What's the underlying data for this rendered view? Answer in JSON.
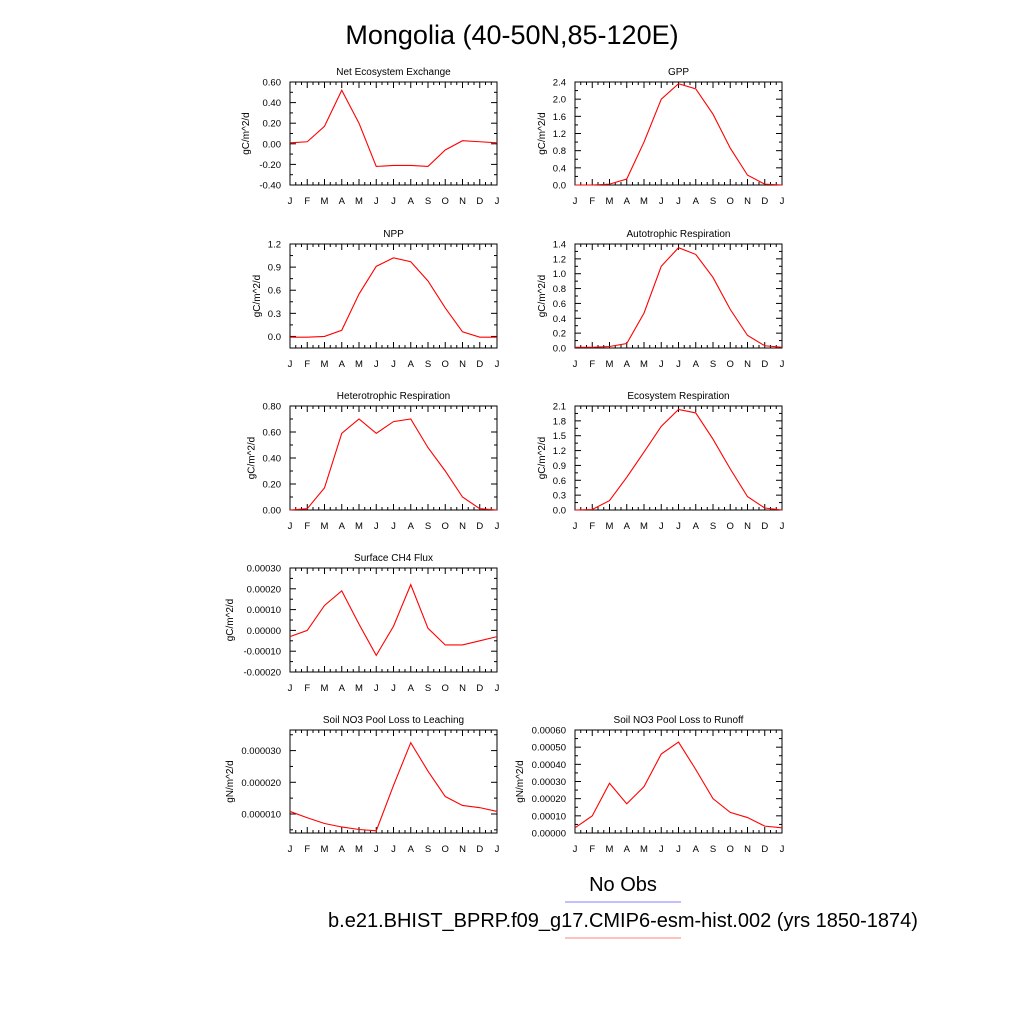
{
  "figure": {
    "title": "Mongolia (40-50N,85-120E)",
    "legend": [
      {
        "label": "No Obs",
        "color": "#8080ff"
      },
      {
        "label": "b.e21.BHIST_BPRP.f09_g17.CMIP6-esm-hist.002 (yrs 1850-1874)",
        "color": "#ff8080"
      }
    ],
    "line_color": "#ff0000"
  },
  "chart_data": [
    {
      "type": "line",
      "title": "Net Ecosystem Exchange",
      "ylabel": "gC/m^2/d",
      "categories": [
        "J",
        "F",
        "M",
        "A",
        "M",
        "J",
        "J",
        "A",
        "S",
        "O",
        "N",
        "D",
        "J"
      ],
      "series": [
        {
          "values": [
            0.01,
            0.02,
            0.17,
            0.52,
            0.2,
            -0.22,
            -0.21,
            -0.21,
            -0.22,
            -0.06,
            0.03,
            0.02,
            0.01
          ]
        }
      ],
      "ylim": [
        -0.4,
        0.6
      ],
      "yticks": [
        -0.4,
        -0.2,
        0.0,
        0.2,
        0.4,
        0.6
      ],
      "ytick_labels": [
        "-0.40",
        "-0.20",
        "0.00",
        "0.20",
        "0.40",
        "0.60"
      ]
    },
    {
      "type": "line",
      "title": "GPP",
      "ylabel": "gC/m^2/d",
      "categories": [
        "J",
        "F",
        "M",
        "A",
        "M",
        "J",
        "J",
        "A",
        "S",
        "O",
        "N",
        "D",
        "J"
      ],
      "series": [
        {
          "values": [
            0.0,
            0.0,
            0.02,
            0.14,
            1.0,
            2.0,
            2.36,
            2.24,
            1.65,
            0.86,
            0.23,
            0.02,
            0.0
          ]
        }
      ],
      "ylim": [
        0.0,
        2.4
      ],
      "yticks": [
        0.0,
        0.4,
        0.8,
        1.2,
        1.6,
        2.0,
        2.4
      ],
      "ytick_labels": [
        "0.0",
        "0.4",
        "0.8",
        "1.2",
        "1.6",
        "2.0",
        "2.4"
      ]
    },
    {
      "type": "line",
      "title": "NPP",
      "ylabel": "gC/m^2/d",
      "categories": [
        "J",
        "F",
        "M",
        "A",
        "M",
        "J",
        "J",
        "A",
        "S",
        "O",
        "N",
        "D",
        "J"
      ],
      "series": [
        {
          "values": [
            -0.01,
            -0.01,
            0.0,
            0.08,
            0.55,
            0.91,
            1.02,
            0.97,
            0.72,
            0.37,
            0.06,
            -0.01,
            -0.01
          ]
        }
      ],
      "ylim": [
        -0.15,
        1.2
      ],
      "yticks": [
        0.0,
        0.3,
        0.6,
        0.9,
        1.2
      ],
      "ytick_labels": [
        "0.0",
        "0.3",
        "0.6",
        "0.9",
        "1.2"
      ]
    },
    {
      "type": "line",
      "title": "Autotrophic Respiration",
      "ylabel": "gC/m^2/d",
      "categories": [
        "J",
        "F",
        "M",
        "A",
        "M",
        "J",
        "J",
        "A",
        "S",
        "O",
        "N",
        "D",
        "J"
      ],
      "series": [
        {
          "values": [
            0.01,
            0.01,
            0.02,
            0.06,
            0.47,
            1.1,
            1.35,
            1.26,
            0.95,
            0.52,
            0.17,
            0.03,
            0.01
          ]
        }
      ],
      "ylim": [
        0.0,
        1.4
      ],
      "yticks": [
        0.0,
        0.2,
        0.4,
        0.6,
        0.8,
        1.0,
        1.2,
        1.4
      ],
      "ytick_labels": [
        "0.0",
        "0.2",
        "0.4",
        "0.6",
        "0.8",
        "1.0",
        "1.2",
        "1.4"
      ]
    },
    {
      "type": "line",
      "title": "Heterotrophic Respiration",
      "ylabel": "gC/m^2/d",
      "categories": [
        "J",
        "F",
        "M",
        "A",
        "M",
        "J",
        "J",
        "A",
        "S",
        "O",
        "N",
        "D",
        "J"
      ],
      "series": [
        {
          "values": [
            0.0,
            0.01,
            0.17,
            0.59,
            0.7,
            0.59,
            0.68,
            0.7,
            0.48,
            0.3,
            0.1,
            0.01,
            0.0
          ]
        }
      ],
      "ylim": [
        0.0,
        0.8
      ],
      "yticks": [
        0.0,
        0.2,
        0.4,
        0.6,
        0.8
      ],
      "ytick_labels": [
        "0.00",
        "0.20",
        "0.40",
        "0.60",
        "0.80"
      ]
    },
    {
      "type": "line",
      "title": "Ecosystem Respiration",
      "ylabel": "gC/m^2/d",
      "categories": [
        "J",
        "F",
        "M",
        "A",
        "M",
        "J",
        "J",
        "A",
        "S",
        "O",
        "N",
        "D",
        "J"
      ],
      "series": [
        {
          "values": [
            0.0,
            0.01,
            0.19,
            0.66,
            1.17,
            1.69,
            2.03,
            1.96,
            1.43,
            0.83,
            0.27,
            0.04,
            0.0
          ]
        }
      ],
      "ylim": [
        0.0,
        2.1
      ],
      "yticks": [
        0.0,
        0.3,
        0.6,
        0.9,
        1.2,
        1.5,
        1.8,
        2.1
      ],
      "ytick_labels": [
        "0.0",
        "0.3",
        "0.6",
        "0.9",
        "1.2",
        "1.5",
        "1.8",
        "2.1"
      ]
    },
    {
      "type": "line",
      "title": "Surface CH4 Flux",
      "ylabel": "gC/m^2/d",
      "categories": [
        "J",
        "F",
        "M",
        "A",
        "M",
        "J",
        "J",
        "A",
        "S",
        "O",
        "N",
        "D",
        "J"
      ],
      "series": [
        {
          "values": [
            -3e-05,
            0.0,
            0.00012,
            0.00019,
            3e-05,
            -0.00012,
            2e-05,
            0.00022,
            1e-05,
            -7e-05,
            -7e-05,
            -5e-05,
            -3e-05
          ]
        }
      ],
      "ylim": [
        -0.0002,
        0.0003
      ],
      "yticks": [
        -0.0002,
        -0.0001,
        0.0,
        0.0001,
        0.0002,
        0.0003
      ],
      "ytick_labels": [
        "-0.00020",
        "-0.00010",
        "0.00000",
        "0.00010",
        "0.00020",
        "0.00030"
      ]
    },
    {
      "type": "line",
      "title": "Soil NO3 Pool Loss to Leaching",
      "ylabel": "gN/m^2/d",
      "categories": [
        "J",
        "F",
        "M",
        "A",
        "M",
        "J",
        "J",
        "A",
        "S",
        "O",
        "N",
        "D",
        "J"
      ],
      "series": [
        {
          "values": [
            1.08e-05,
            8.8e-06,
            7e-06,
            5.9e-06,
            5.1e-06,
            4.7e-06,
            1.9e-05,
            3.25e-05,
            2.35e-05,
            1.55e-05,
            1.27e-05,
            1.2e-05,
            1.08e-05
          ]
        }
      ],
      "ylim": [
        4e-06,
        3.65e-05
      ],
      "yticks": [
        1e-05,
        2e-05,
        3e-05
      ],
      "ytick_labels": [
        "0.000010",
        "0.000020",
        "0.000030"
      ]
    },
    {
      "type": "line",
      "title": "Soil NO3 Pool Loss to Runoff",
      "ylabel": "gN/m^2/d",
      "categories": [
        "J",
        "F",
        "M",
        "A",
        "M",
        "J",
        "J",
        "A",
        "S",
        "O",
        "N",
        "D",
        "J"
      ],
      "series": [
        {
          "values": [
            3e-05,
            0.0001,
            0.00029,
            0.00017,
            0.00027,
            0.00046,
            0.00053,
            0.00037,
            0.0002,
            0.00012,
            9e-05,
            4e-05,
            3e-05
          ]
        }
      ],
      "ylim": [
        0.0,
        0.0006
      ],
      "yticks": [
        0.0,
        0.0001,
        0.0002,
        0.0003,
        0.0004,
        0.0005,
        0.0006
      ],
      "ytick_labels": [
        "0.00000",
        "0.00010",
        "0.00020",
        "0.00030",
        "0.00040",
        "0.00050",
        "0.00060"
      ]
    }
  ]
}
